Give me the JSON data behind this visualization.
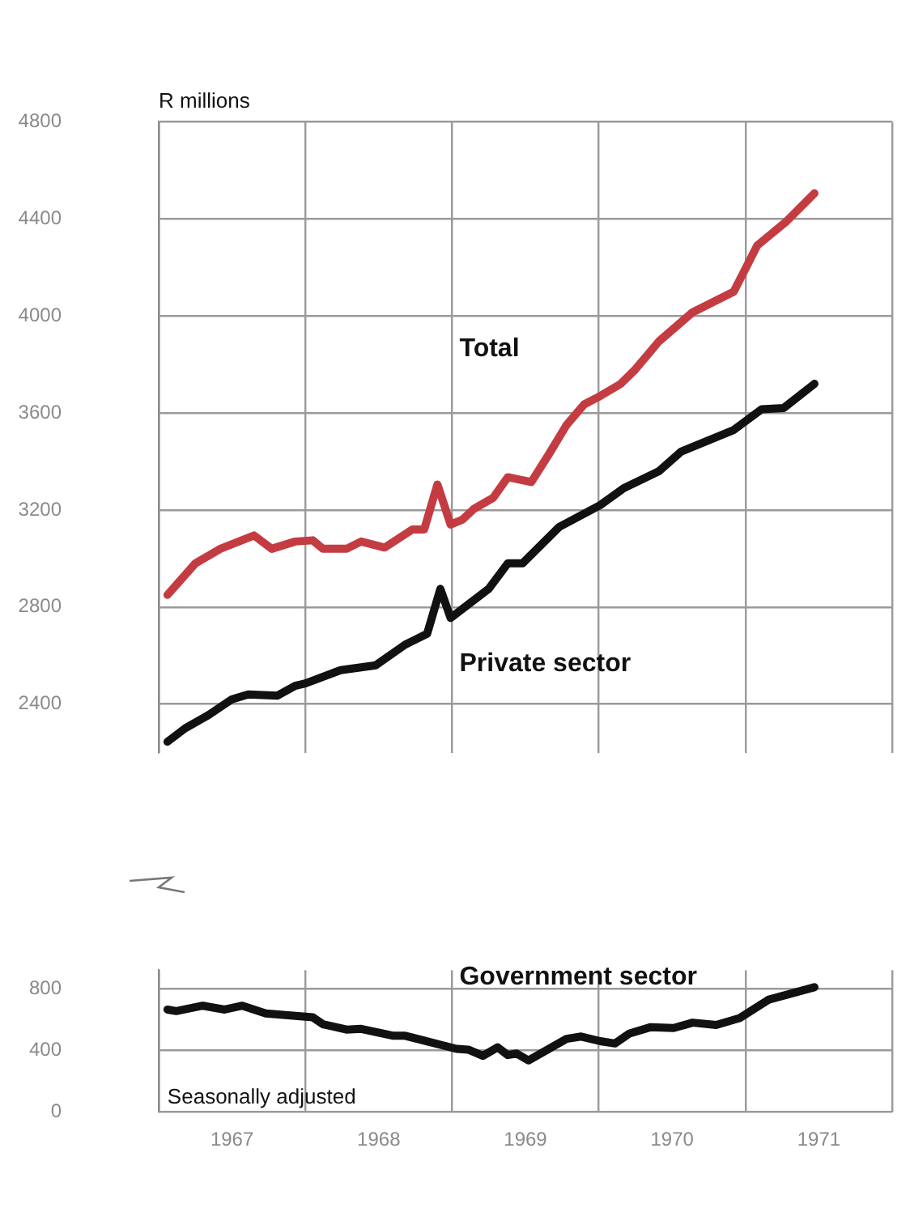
{
  "chart_data": [
    {
      "type": "line",
      "ylabel": "R millions",
      "xlim": [
        1967,
        1972
      ],
      "ylim": [
        2200,
        4800
      ],
      "yticks": [
        2400,
        2800,
        3200,
        3600,
        4000,
        4400,
        4800
      ],
      "xticks": [
        {
          "value": 1967,
          "label": null
        },
        {
          "value": 1968,
          "label": null
        },
        {
          "value": 1969,
          "label": null
        },
        {
          "value": 1970,
          "label": null
        },
        {
          "value": 1971,
          "label": null
        },
        {
          "value": 1972,
          "label": null
        }
      ],
      "grid": true,
      "tick_labels": "y",
      "series": [
        {
          "name": "Total",
          "color": "#c43c41",
          "x": [
            1967.06,
            1967.25,
            1967.42,
            1967.65,
            1967.77,
            1967.93,
            1968.05,
            1968.12,
            1968.28,
            1968.38,
            1968.54,
            1968.73,
            1968.81,
            1968.9,
            1968.99,
            1969.07,
            1969.15,
            1969.28,
            1969.38,
            1969.54,
            1969.66,
            1969.78,
            1969.9,
            1970.01,
            1970.15,
            1970.25,
            1970.41,
            1970.64,
            1970.92,
            1971.08,
            1971.28,
            1971.47
          ],
          "values": [
            2850,
            2980,
            3040,
            3095,
            3040,
            3070,
            3075,
            3040,
            3040,
            3070,
            3045,
            3120,
            3120,
            3305,
            3140,
            3160,
            3205,
            3250,
            3335,
            3315,
            3430,
            3550,
            3635,
            3670,
            3720,
            3780,
            3895,
            4015,
            4100,
            4290,
            4390,
            4505
          ]
        },
        {
          "name": "Private sector",
          "color": "#111111",
          "x": [
            1967.06,
            1967.18,
            1967.34,
            1967.5,
            1967.61,
            1967.81,
            1967.93,
            1968.0,
            1968.24,
            1968.48,
            1968.68,
            1968.83,
            1968.92,
            1968.99,
            1969.25,
            1969.38,
            1969.48,
            1969.73,
            1970.01,
            1970.17,
            1970.41,
            1970.56,
            1970.92,
            1971.11,
            1971.26,
            1971.47
          ],
          "values": [
            2245,
            2300,
            2355,
            2420,
            2440,
            2435,
            2475,
            2485,
            2540,
            2560,
            2645,
            2690,
            2875,
            2755,
            2875,
            2980,
            2980,
            3130,
            3220,
            3290,
            3360,
            3440,
            3530,
            3615,
            3620,
            3720
          ]
        }
      ]
    },
    {
      "type": "line",
      "annotations": [
        "Seasonally adjusted"
      ],
      "xlim": [
        1967,
        1972
      ],
      "ylim": [
        0,
        920
      ],
      "yticks": [
        0,
        400,
        800
      ],
      "xticks": [
        {
          "value": 1967,
          "label": null
        },
        {
          "value": 1967.5,
          "label": "1967"
        },
        {
          "value": 1968,
          "label": null
        },
        {
          "value": 1968.5,
          "label": "1968"
        },
        {
          "value": 1969,
          "label": null
        },
        {
          "value": 1969.5,
          "label": "1969"
        },
        {
          "value": 1970,
          "label": null
        },
        {
          "value": 1970.5,
          "label": "1970"
        },
        {
          "value": 1971,
          "label": null
        },
        {
          "value": 1971.5,
          "label": "1971"
        },
        {
          "value": 1972,
          "label": null
        }
      ],
      "grid": true,
      "series": [
        {
          "name": "Government sector",
          "color": "#111111",
          "x": [
            1967.06,
            1967.12,
            1967.3,
            1967.45,
            1967.57,
            1967.73,
            1968.05,
            1968.12,
            1968.28,
            1968.38,
            1968.6,
            1968.68,
            1969.03,
            1969.11,
            1969.21,
            1969.31,
            1969.38,
            1969.44,
            1969.52,
            1969.78,
            1969.88,
            1970.01,
            1970.11,
            1970.21,
            1970.35,
            1970.51,
            1970.64,
            1970.8,
            1970.96,
            1971.16,
            1971.47
          ],
          "values": [
            665,
            655,
            690,
            665,
            690,
            640,
            615,
            570,
            535,
            540,
            495,
            495,
            410,
            405,
            365,
            420,
            370,
            380,
            335,
            475,
            490,
            460,
            445,
            510,
            550,
            545,
            580,
            565,
            610,
            730,
            810
          ]
        }
      ]
    }
  ]
}
